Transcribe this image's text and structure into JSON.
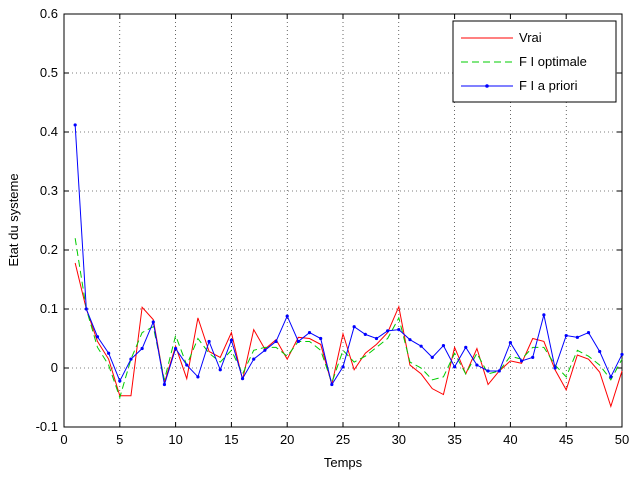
{
  "chart_data": {
    "type": "line",
    "xlabel": "Temps",
    "ylabel": "Etat du systeme",
    "xlim": [
      0,
      50
    ],
    "ylim": [
      -0.1,
      0.6
    ],
    "xticks": [
      "0",
      "5",
      "10",
      "15",
      "20",
      "25",
      "30",
      "35",
      "40",
      "45",
      "50"
    ],
    "yticks": [
      "-0.1",
      "0",
      "0.1",
      "0.2",
      "0.3",
      "0.4",
      "0.5",
      "0.6"
    ],
    "grid": true,
    "legend_position": "top-right",
    "x": [
      1,
      2,
      3,
      4,
      5,
      6,
      7,
      8,
      9,
      10,
      11,
      12,
      13,
      14,
      15,
      16,
      17,
      18,
      19,
      20,
      21,
      22,
      23,
      24,
      25,
      26,
      27,
      28,
      29,
      30,
      31,
      32,
      33,
      34,
      35,
      36,
      37,
      38,
      39,
      40,
      41,
      42,
      43,
      44,
      45,
      46,
      47,
      48,
      49,
      50
    ],
    "series": [
      {
        "name": "Vrai",
        "color": "#ff0000",
        "style": "solid",
        "values": [
          0.178,
          0.1,
          0.045,
          0.015,
          -0.047,
          -0.047,
          0.103,
          0.082,
          -0.025,
          0.037,
          -0.018,
          0.085,
          0.028,
          0.018,
          0.06,
          -0.02,
          0.065,
          0.032,
          0.048,
          0.015,
          0.052,
          0.05,
          0.04,
          -0.028,
          0.058,
          -0.003,
          0.025,
          0.04,
          0.06,
          0.104,
          0.005,
          -0.01,
          -0.035,
          -0.045,
          0.035,
          -0.01,
          0.033,
          -0.028,
          -0.005,
          0.012,
          0.008,
          0.05,
          0.045,
          -0.003,
          -0.037,
          0.022,
          0.015,
          -0.007,
          -0.065,
          -0.005
        ]
      },
      {
        "name": "F I optimale",
        "color": "#00cc00",
        "style": "dashed",
        "values": [
          0.22,
          0.1,
          0.035,
          0.005,
          -0.05,
          0.015,
          0.06,
          0.07,
          -0.02,
          0.055,
          0.005,
          0.05,
          0.025,
          0.01,
          0.03,
          -0.01,
          0.03,
          0.035,
          0.035,
          0.02,
          0.045,
          0.045,
          0.03,
          -0.025,
          0.03,
          0.01,
          0.02,
          0.035,
          0.05,
          0.085,
          0.01,
          0.0,
          -0.02,
          -0.015,
          0.025,
          -0.01,
          0.025,
          -0.01,
          -0.005,
          0.02,
          0.015,
          0.035,
          0.035,
          0.005,
          -0.015,
          0.03,
          0.02,
          0.005,
          -0.02,
          0.015
        ]
      },
      {
        "name": "F I a priori",
        "color": "#0000ff",
        "style": "solid-dots",
        "values": [
          0.412,
          0.1,
          0.053,
          0.025,
          -0.022,
          0.015,
          0.033,
          0.078,
          -0.028,
          0.033,
          0.005,
          -0.015,
          0.045,
          -0.003,
          0.047,
          -0.018,
          0.015,
          0.03,
          0.045,
          0.088,
          0.045,
          0.06,
          0.05,
          -0.028,
          0.002,
          0.07,
          0.057,
          0.05,
          0.063,
          0.065,
          0.048,
          0.037,
          0.018,
          0.038,
          0.002,
          0.035,
          0.005,
          -0.005,
          -0.005,
          0.043,
          0.012,
          0.018,
          0.09,
          0.0,
          0.055,
          0.052,
          0.06,
          0.028,
          -0.015,
          0.023
        ]
      }
    ]
  }
}
